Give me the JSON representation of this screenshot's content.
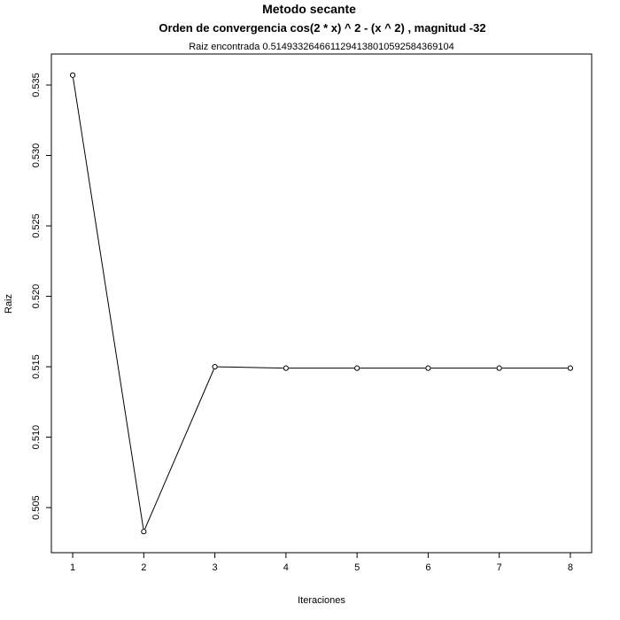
{
  "chart_data": {
    "type": "line",
    "title": "Metodo secante",
    "subtitle": "Orden de convergencia cos(2 * x) ^ 2 - (x ^ 2) , magnitud -32",
    "annotation": "Raiz encontrada 0.514933264661129413801059258436910​4",
    "xlabel": "Iteraciones",
    "ylabel": "Raiz",
    "x": [
      1,
      2,
      3,
      4,
      5,
      6,
      7,
      8
    ],
    "y": [
      0.5357,
      0.5033,
      0.515,
      0.5149,
      0.5149,
      0.5149,
      0.5149,
      0.5149
    ],
    "x_ticks": [
      1,
      2,
      3,
      4,
      5,
      6,
      7,
      8
    ],
    "y_ticks": [
      0.505,
      0.51,
      0.515,
      0.52,
      0.525,
      0.53,
      0.535
    ],
    "y_tick_labels": [
      "0.505",
      "0.510",
      "0.515",
      "0.520",
      "0.525",
      "0.530",
      "0.535"
    ],
    "xlim": [
      0.7,
      8.3
    ],
    "ylim": [
      0.5018,
      0.5372
    ],
    "grid": false,
    "marker": "open-circle",
    "line_color": "#000000"
  }
}
